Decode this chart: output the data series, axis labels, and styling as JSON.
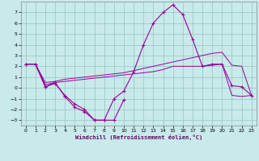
{
  "xlabel": "Windchill (Refroidissement éolien,°C)",
  "bg_color": "#c8eaea",
  "grid_color": "#a0c8c8",
  "line_color": "#990099",
  "xlim": [
    -0.5,
    23.5
  ],
  "ylim": [
    -3.5,
    8.0
  ],
  "yticks": [
    -3,
    -2,
    -1,
    0,
    1,
    2,
    3,
    4,
    5,
    6,
    7
  ],
  "xticks": [
    0,
    1,
    2,
    3,
    4,
    5,
    6,
    7,
    8,
    9,
    10,
    11,
    12,
    13,
    14,
    15,
    16,
    17,
    18,
    19,
    20,
    21,
    22,
    23
  ],
  "series": [
    {
      "style": "solid_marker",
      "x": [
        0,
        1,
        2,
        3,
        4,
        5,
        6,
        7,
        8,
        9,
        10,
        11,
        12,
        13,
        14,
        15,
        16,
        17,
        18,
        19,
        20,
        21,
        22,
        23
      ],
      "y": [
        2.2,
        2.2,
        0.1,
        0.5,
        -0.8,
        -1.8,
        -2.2,
        -3.0,
        -3.0,
        -1.0,
        -0.3,
        1.5,
        4.0,
        6.0,
        7.0,
        7.7,
        6.8,
        4.5,
        2.0,
        2.2,
        2.2,
        0.2,
        0.1,
        -0.7
      ]
    },
    {
      "style": "solid_thin",
      "x": [
        0,
        1,
        2,
        3,
        4,
        5,
        6,
        7,
        8,
        9,
        10,
        11,
        12,
        13,
        14,
        15,
        16,
        17,
        18,
        19,
        20,
        21,
        22,
        23
      ],
      "y": [
        2.2,
        2.2,
        0.5,
        0.6,
        0.8,
        0.9,
        1.0,
        1.1,
        1.2,
        1.3,
        1.4,
        1.6,
        1.8,
        2.0,
        2.2,
        2.4,
        2.6,
        2.8,
        3.0,
        3.2,
        3.3,
        2.1,
        2.0,
        -0.7
      ]
    },
    {
      "style": "solid_thin",
      "x": [
        0,
        1,
        2,
        3,
        4,
        5,
        6,
        7,
        8,
        9,
        10,
        11,
        12,
        13,
        14,
        15,
        16,
        17,
        18,
        19,
        20,
        21,
        22,
        23
      ],
      "y": [
        2.2,
        2.2,
        0.3,
        0.5,
        0.6,
        0.7,
        0.8,
        0.9,
        1.0,
        1.1,
        1.2,
        1.3,
        1.4,
        1.5,
        1.7,
        2.0,
        2.0,
        2.0,
        2.0,
        2.1,
        2.2,
        -0.7,
        -0.8,
        -0.7
      ]
    },
    {
      "style": "solid_marker",
      "x": [
        0,
        1,
        2,
        3,
        4,
        5,
        6,
        7,
        8,
        9,
        10
      ],
      "y": [
        2.2,
        2.2,
        0.1,
        0.4,
        -0.7,
        -1.5,
        -2.0,
        -3.0,
        -3.0,
        -3.0,
        -1.1
      ]
    }
  ]
}
